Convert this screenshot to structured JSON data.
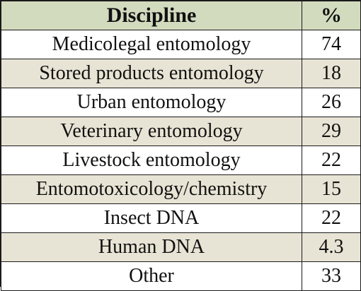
{
  "table": {
    "headers": [
      "Discipline",
      "%"
    ],
    "rows": [
      {
        "discipline": "Medicolegal entomology",
        "percent": "74"
      },
      {
        "discipline": "Stored products entomology",
        "percent": "18"
      },
      {
        "discipline": "Urban entomology",
        "percent": "26"
      },
      {
        "discipline": "Veterinary entomology",
        "percent": "29"
      },
      {
        "discipline": "Livestock entomology",
        "percent": "22"
      },
      {
        "discipline": "Entomotoxicology/chemistry",
        "percent": "15"
      },
      {
        "discipline": "Insect DNA",
        "percent": "22"
      },
      {
        "discipline": "Human DNA",
        "percent": "4.3"
      },
      {
        "discipline": "Other",
        "percent": "33"
      }
    ]
  },
  "colors": {
    "header_bg": "#d3dbbf",
    "shaded_row_bg": "#e8e4d5",
    "plain_row_bg": "#ffffff",
    "border": "#1a1a1a"
  }
}
